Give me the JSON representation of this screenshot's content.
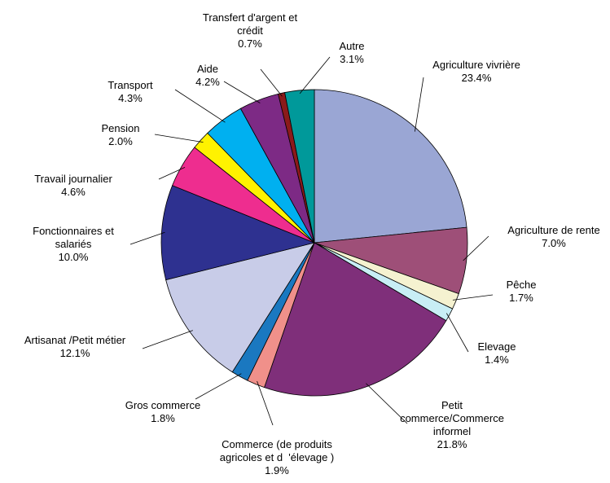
{
  "chart_data": {
    "type": "pie",
    "categories": [
      "Agriculture vivrière",
      "Agriculture de rente",
      "Pêche",
      "Elevage",
      "Petit\ncommerce/Commerce\ninformel",
      "Commerce (de produits\nagricoles et d  'élevage )",
      "Gros commerce",
      "Artisanat /Petit métier",
      "Fonctionnaires et\nsalariés",
      "Travail journalier",
      "Pension",
      "Transport",
      "Aide",
      "Transfert d'argent et\ncrédit",
      "Autre"
    ],
    "values": [
      23.4,
      7.0,
      1.7,
      1.4,
      21.8,
      1.9,
      1.8,
      12.1,
      10.0,
      4.6,
      2.0,
      4.3,
      4.2,
      0.7,
      3.1
    ],
    "value_labels": [
      "23.4%",
      "7.0%",
      "1.7%",
      "1.4%",
      "21.8%",
      "1.9%",
      "1.8%",
      "12.1%",
      "10.0%",
      "4.6%",
      "2.0%",
      "4.3%",
      "4.2%",
      "0.7%",
      "3.1%"
    ],
    "colors": [
      "#9aa6d4",
      "#9e4f78",
      "#f5f2d0",
      "#c8eef5",
      "#7f2f7a",
      "#f0908a",
      "#1a78c0",
      "#c8cce8",
      "#2e3190",
      "#ee2d8f",
      "#fff200",
      "#00b0f0",
      "#7d2a85",
      "#8b1a1a",
      "#00999a"
    ]
  }
}
